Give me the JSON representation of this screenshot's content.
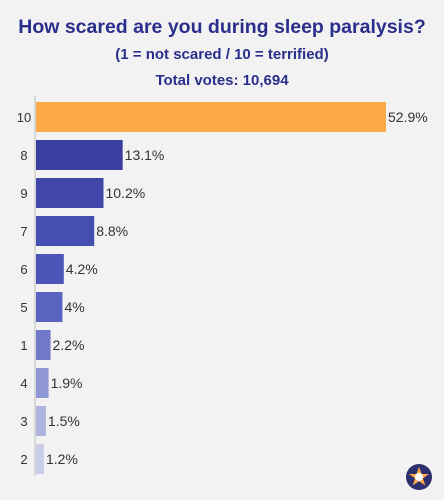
{
  "header": {
    "title": "How scared are you during sleep paralysis?",
    "subtitle": "(1 = not scared / 10 = terrified)",
    "votes": "Total votes: 10,694"
  },
  "colors": {
    "highlight": "#fcaa48",
    "series_shades": [
      "#2f3289",
      "#3a3f9f",
      "#4047a8",
      "#454fb2",
      "#4b55b8",
      "#5a64c0",
      "#6f79c8",
      "#8e96d3",
      "#aeb4df",
      "#c9cde9"
    ],
    "title": "#2b2f8c",
    "label": "#333333"
  },
  "chart_data": {
    "type": "bar",
    "orientation": "horizontal",
    "categories": [
      "10",
      "8",
      "9",
      "7",
      "6",
      "5",
      "1",
      "4",
      "3",
      "2"
    ],
    "values": [
      52.9,
      13.1,
      10.2,
      8.8,
      4.2,
      4,
      2.2,
      1.9,
      1.5,
      1.2
    ],
    "value_labels": [
      "52.9%",
      "13.1%",
      "10.2%",
      "8.8%",
      "4.2%",
      "4%",
      "2.2%",
      "1.9%",
      "1.5%",
      "1.2%"
    ],
    "xlim": [
      0,
      52.9
    ],
    "title": "How scared are you during sleep paralysis?",
    "grid": false,
    "legend": "none"
  },
  "logo": {
    "icon": "star-logo-icon"
  }
}
